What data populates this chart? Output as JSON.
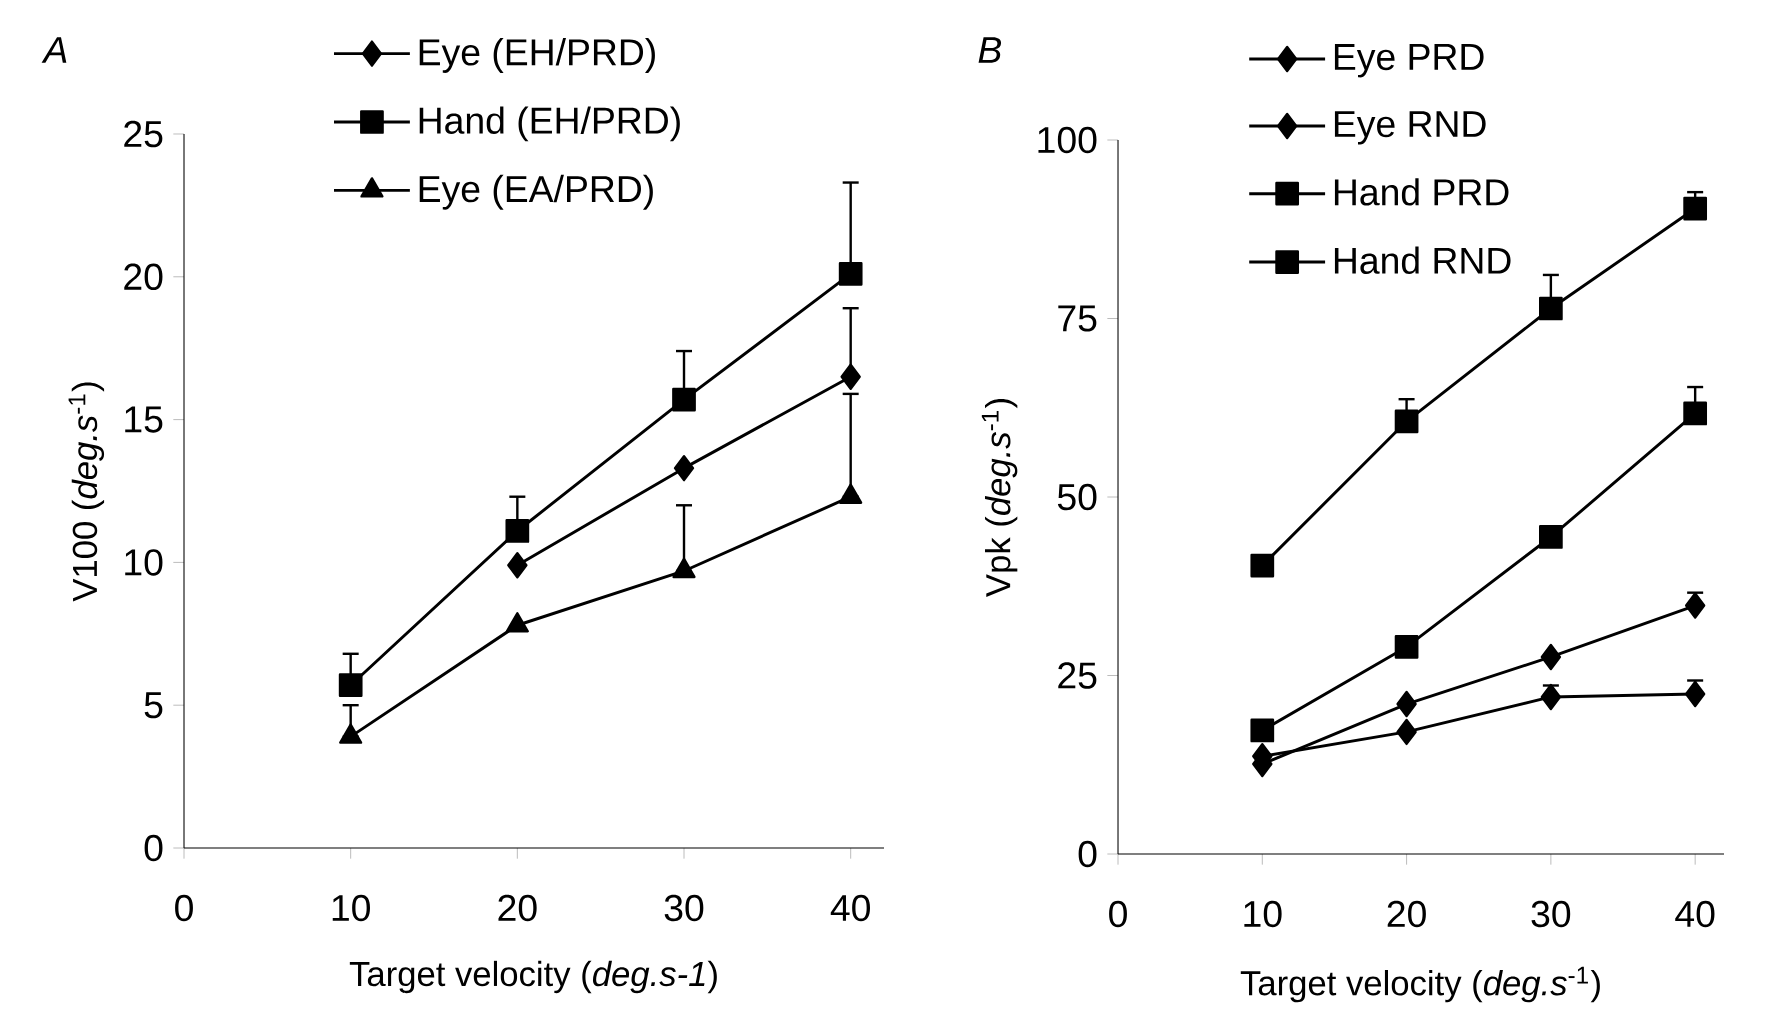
{
  "chart_data": [
    {
      "type": "line",
      "title": "A",
      "xlabel": "Target velocity (*deg.s-1*)",
      "ylabel": "V100 (*deg.s*$^{-1}$)",
      "x": [
        10,
        20,
        30,
        40
      ],
      "xlim": [
        0,
        42
      ],
      "xticks": [
        0,
        10,
        20,
        30,
        40
      ],
      "ylim": [
        0,
        25
      ],
      "yticks": [
        0,
        5,
        10,
        15,
        20,
        25
      ],
      "legend": "top left",
      "grid": false,
      "series": [
        {
          "name": "Eye (EH/PRD)",
          "color": "#000000",
          "marker": "diamond",
          "values": [
            null,
            9.9,
            13.3,
            16.5
          ],
          "errors": [
            null,
            null,
            null,
            [
              16.5,
              18.9
            ]
          ]
        },
        {
          "name": "Hand (EH/PRD)",
          "color": "#000000",
          "marker": "square",
          "values": [
            5.7,
            11.1,
            15.7,
            20.1
          ],
          "errors": [
            [
              5.7,
              6.8
            ],
            [
              11.1,
              12.3
            ],
            [
              15.7,
              17.4
            ],
            [
              20.1,
              23.3
            ]
          ]
        },
        {
          "name": "Eye (EA/PRD)",
          "color": "#000000",
          "marker": "triangle",
          "values": [
            3.9,
            7.8,
            9.7,
            12.3
          ],
          "errors": [
            [
              3.9,
              5.0
            ],
            null,
            [
              9.7,
              12.0
            ],
            [
              12.3,
              15.9
            ]
          ]
        }
      ]
    },
    {
      "type": "line",
      "title": "B",
      "xlabel": "Target velocity (*deg.s*$^{-1}$)",
      "ylabel": "Vpk (*deg.s*$^{-1}$)",
      "x": [
        10,
        20,
        30,
        40
      ],
      "xlim": [
        0,
        42
      ],
      "xticks": [
        0,
        10,
        20,
        30,
        40
      ],
      "ylim": [
        0,
        100
      ],
      "yticks": [
        0,
        25,
        50,
        75,
        100
      ],
      "legend": "top left",
      "grid": false,
      "series": [
        {
          "name": "Eye PRD",
          "color": "#000000",
          "marker": "diamond",
          "values": [
            12.6,
            21.0,
            27.6,
            34.8
          ],
          "errors": [
            null,
            null,
            null,
            [
              34.8,
              36.6
            ]
          ]
        },
        {
          "name": "Eye RND",
          "color": "#000000",
          "marker": "diamond",
          "values": [
            13.7,
            17.1,
            22.0,
            22.4
          ],
          "errors": [
            null,
            null,
            [
              22.0,
              23.6
            ],
            [
              22.4,
              24.3
            ]
          ]
        },
        {
          "name": "Hand PRD",
          "color": "#000000",
          "marker": "square",
          "values": [
            17.3,
            29.0,
            44.4,
            61.7
          ],
          "errors": [
            null,
            null,
            null,
            [
              61.7,
              65.4
            ]
          ]
        },
        {
          "name": "Hand RND",
          "color": "#000000",
          "marker": "square",
          "values": [
            40.4,
            60.6,
            76.4,
            90.4
          ],
          "errors": [
            null,
            [
              60.6,
              63.7
            ],
            [
              76.4,
              81.1
            ],
            [
              90.4,
              92.7
            ]
          ]
        }
      ]
    }
  ]
}
